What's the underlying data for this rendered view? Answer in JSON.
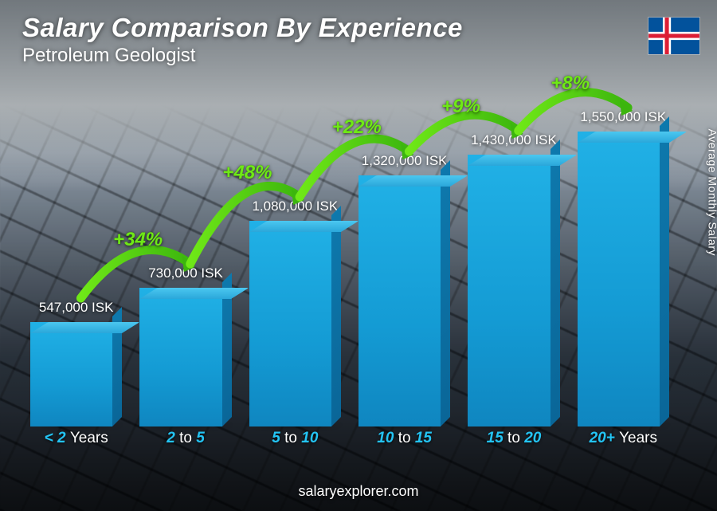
{
  "title": "Salary Comparison By Experience",
  "subtitle": "Petroleum Geologist",
  "side_axis_label": "Average Monthly Salary",
  "footer": "salaryexplorer.com",
  "flag": {
    "country": "Iceland",
    "field": "#02529c",
    "cross_outer": "#ffffff",
    "cross_inner": "#dc1e35"
  },
  "chart": {
    "type": "bar",
    "currency": "ISK",
    "max_value": 1550000,
    "bar_fill": "#21b1e6",
    "bar_side": "#0e79ad",
    "bar_top": "#4bc7f0",
    "xlabel_accent": "#23c4f4",
    "arc_color_stroke": "#3cb50e",
    "arc_color_fill": "#6fe817",
    "arc_label_fontsize": 24,
    "title_fontsize": 33,
    "subtitle_fontsize": 24,
    "value_fontsize": 17,
    "background_tint": "#5e6a76",
    "categories": [
      {
        "label_strong": "< 2",
        "label_thin": "Years",
        "value": 547000,
        "value_label": "547,000 ISK"
      },
      {
        "label_strong": "2",
        "label_mid": "to",
        "label_post": "5",
        "value": 730000,
        "value_label": "730,000 ISK"
      },
      {
        "label_strong": "5",
        "label_mid": "to",
        "label_post": "10",
        "value": 1080000,
        "value_label": "1,080,000 ISK"
      },
      {
        "label_strong": "10",
        "label_mid": "to",
        "label_post": "15",
        "value": 1320000,
        "value_label": "1,320,000 ISK"
      },
      {
        "label_strong": "15",
        "label_mid": "to",
        "label_post": "20",
        "value": 1430000,
        "value_label": "1,430,000 ISK"
      },
      {
        "label_strong": "20+",
        "label_thin": "Years",
        "value": 1550000,
        "value_label": "1,550,000 ISK"
      }
    ],
    "increases": [
      {
        "between": [
          0,
          1
        ],
        "label": "+34%"
      },
      {
        "between": [
          1,
          2
        ],
        "label": "+48%"
      },
      {
        "between": [
          2,
          3
        ],
        "label": "+22%"
      },
      {
        "between": [
          3,
          4
        ],
        "label": "+9%"
      },
      {
        "between": [
          4,
          5
        ],
        "label": "+8%"
      }
    ]
  }
}
